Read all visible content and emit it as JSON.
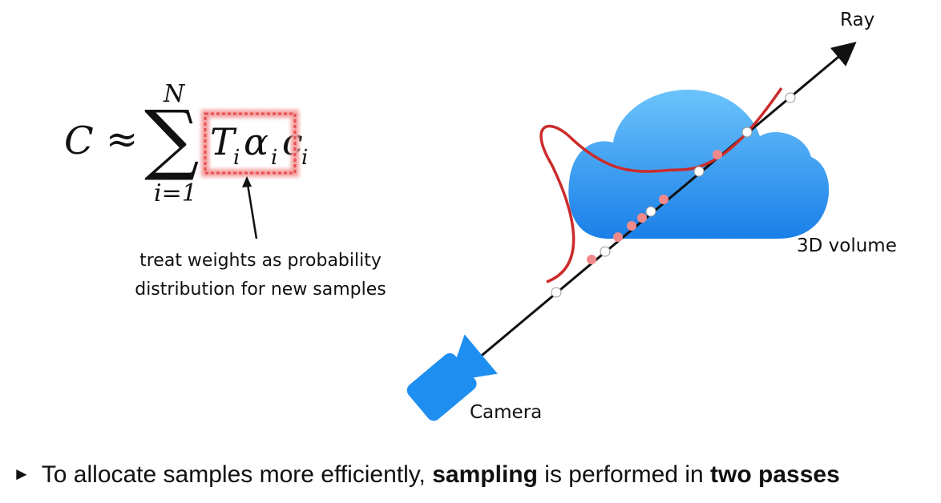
{
  "formula": {
    "lhs": "C",
    "approx": "≈",
    "sum_symbol": "∑",
    "upper_limit": "N",
    "lower_limit": "i=1",
    "term_T": "T",
    "term_alpha": "α",
    "term_c": "c",
    "subscript": "i"
  },
  "annotation": {
    "line1": "treat weights as probability",
    "line2": "distribution for new samples"
  },
  "diagram": {
    "ray_label": "Ray",
    "volume_label": "3D volume",
    "camera_label": "Camera",
    "cloud_color": "#3aa0f0",
    "camera_color": "#1e8ef0",
    "curve_color": "#cc2b2b",
    "fine_sample_color": "#f08a8a",
    "coarse_sample_color": "#ffffff"
  },
  "bullet": {
    "marker": "►",
    "text_before": "To allocate samples more efficiently, ",
    "bold1": "sampling",
    "text_middle": " is performed in ",
    "bold2": "two passes"
  }
}
